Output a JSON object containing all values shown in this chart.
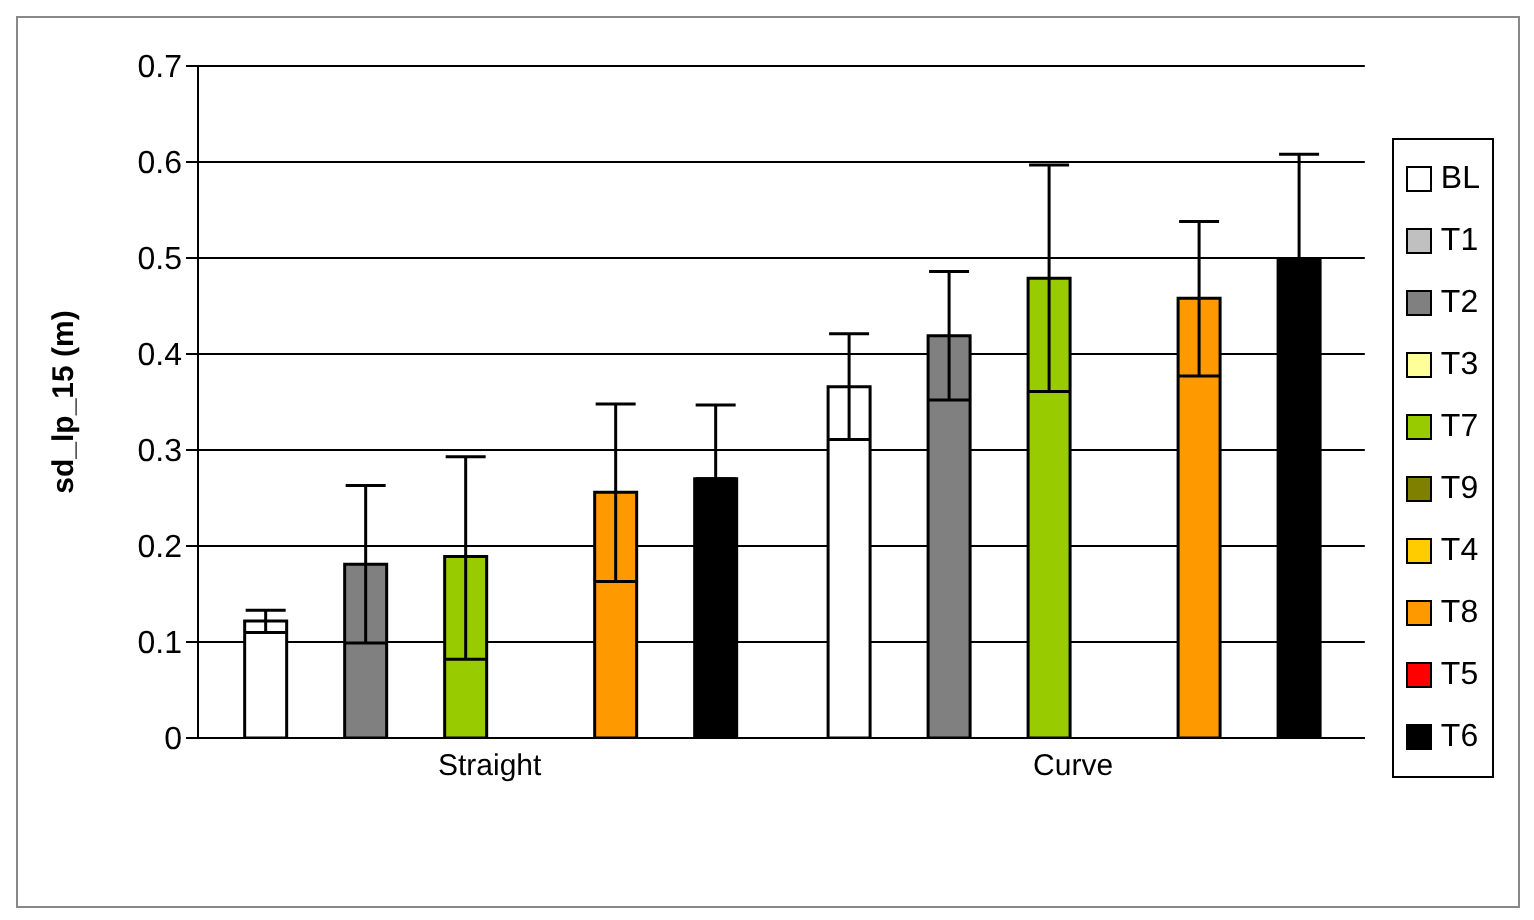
{
  "chart_data": {
    "type": "bar",
    "ylabel": "sd_lp_15 (m)",
    "categories": [
      "Straight",
      "Curve"
    ],
    "series": [
      {
        "name": "BL",
        "color": "#ffffff",
        "values": [
          0.122,
          0.366
        ],
        "errors": [
          [
            0.11,
            0.133
          ],
          [
            0.311,
            0.421
          ]
        ]
      },
      {
        "name": "T1",
        "color": "#c0c0c0",
        "values": [
          0,
          0
        ]
      },
      {
        "name": "T2",
        "color": "#808080",
        "values": [
          0.181,
          0.419
        ],
        "errors": [
          [
            0.099,
            0.263
          ],
          [
            0.352,
            0.486
          ]
        ]
      },
      {
        "name": "T3",
        "color": "#ffff99",
        "values": [
          0,
          0
        ]
      },
      {
        "name": "T7",
        "color": "#99cc00",
        "values": [
          0.189,
          0.479
        ],
        "errors": [
          [
            0.082,
            0.293
          ],
          [
            0.361,
            0.597
          ]
        ]
      },
      {
        "name": "T9",
        "color": "#808000",
        "values": [
          0,
          0
        ]
      },
      {
        "name": "T4",
        "color": "#ffcc00",
        "values": [
          0,
          0
        ]
      },
      {
        "name": "T8",
        "color": "#ff9900",
        "values": [
          0.256,
          0.458
        ],
        "errors": [
          [
            0.163,
            0.348
          ],
          [
            0.377,
            0.538
          ]
        ]
      },
      {
        "name": "T5",
        "color": "#ff0000",
        "values": [
          0,
          0
        ]
      },
      {
        "name": "T6",
        "color": "#000000",
        "values": [
          0.27,
          0.499
        ],
        "errors": [
          [
            0.27,
            0.347
          ],
          [
            0.499,
            0.608
          ]
        ]
      }
    ],
    "ylim": [
      0,
      0.7
    ],
    "yticks": [
      0,
      0.1,
      0.2,
      0.3,
      0.4,
      0.5,
      0.6,
      0.7
    ],
    "grid": "y",
    "legend": "right"
  }
}
